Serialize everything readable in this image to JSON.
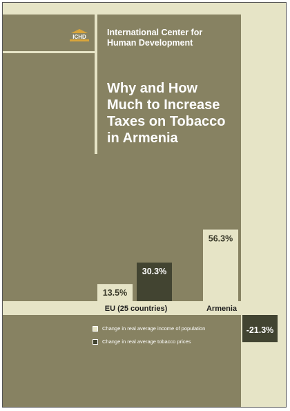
{
  "logo": {
    "text": "ICHD"
  },
  "header": {
    "org_line1": "International Center for",
    "org_line2": "Human Development"
  },
  "title": {
    "line1": "Why and How",
    "line2": "Much to Increase",
    "line3": "Taxes on Tobacco",
    "line4": "in Armenia"
  },
  "colors": {
    "background": "#878262",
    "light": "#e6e4c6",
    "dark": "#424431"
  },
  "chart_data": {
    "type": "bar",
    "categories": [
      "EU (25 countries)",
      "Armenia"
    ],
    "series": [
      {
        "name": "Change in real average income of population",
        "values": [
          13.5,
          56.3
        ],
        "labels": [
          "13.5%",
          "56.3%"
        ],
        "color": "#e6e4c6"
      },
      {
        "name": "Change in real average tobacco prices",
        "values": [
          30.3,
          -21.3
        ],
        "labels": [
          "30.3%",
          "-21.3%"
        ],
        "color": "#424431"
      }
    ]
  }
}
